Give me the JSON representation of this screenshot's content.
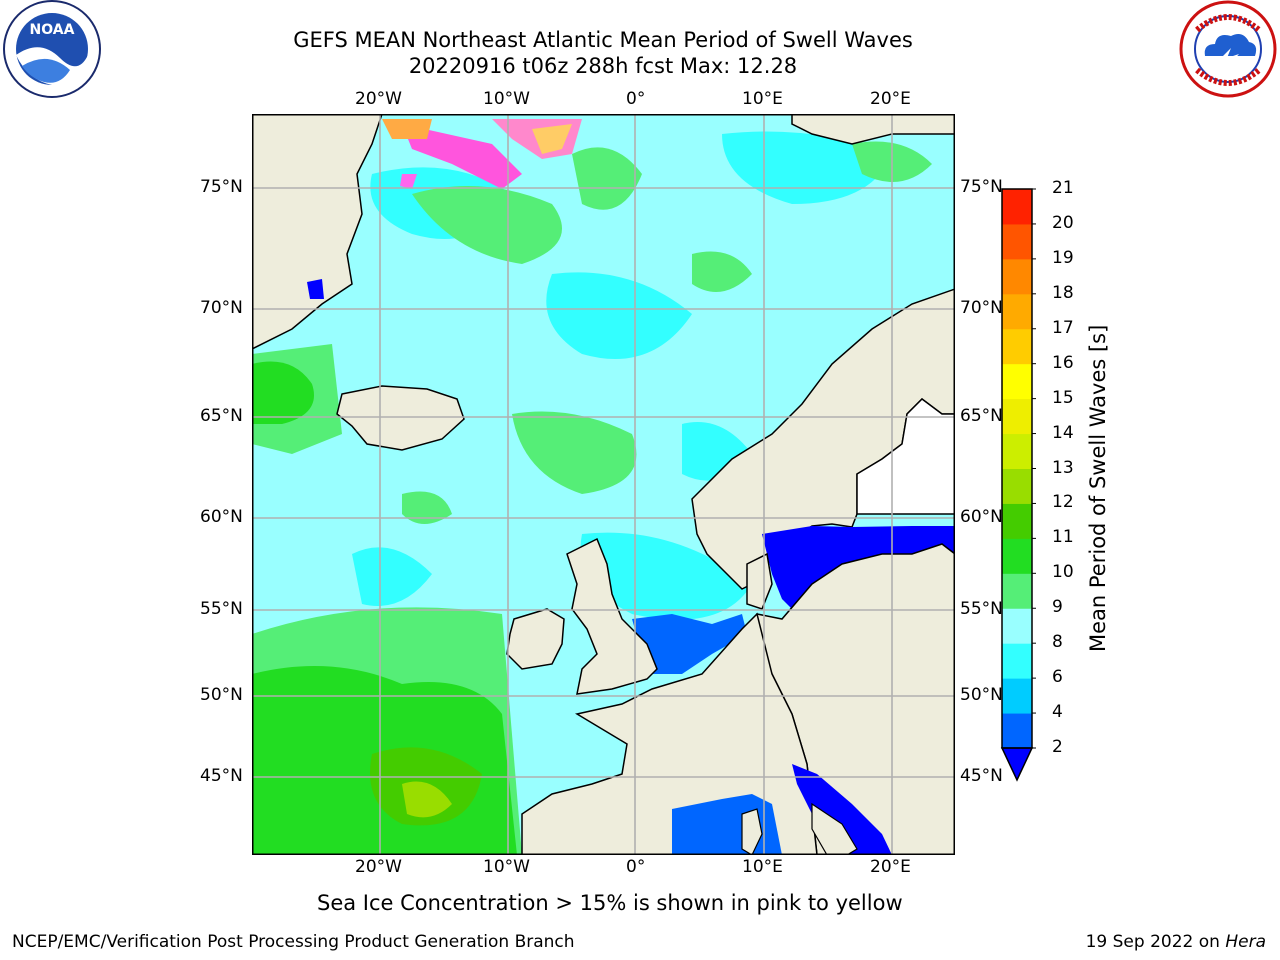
{
  "header": {
    "title_line1": "GEFS MEAN Northeast Atlantic Mean Period of Swell Waves",
    "title_line2": "20220916 t06z 288h fcst   Max: 12.28"
  },
  "logos": {
    "left": {
      "name": "noaa-logo",
      "text": "NOAA",
      "ring_text": "NATIONAL OCEANIC AND ATMOSPHERIC ADMINISTRATION · U.S. DEPARTMENT OF COMMERCE"
    },
    "right": {
      "name": "nws-logo",
      "ring_text": "NATIONAL WEATHER SERVICE"
    }
  },
  "map": {
    "lon_ticks_top": [
      "20°W",
      "10°W",
      "0°",
      "10°E",
      "20°E"
    ],
    "lon_ticks_bottom": [
      "20°W",
      "10°W",
      "0°",
      "10°E",
      "20°E"
    ],
    "lat_ticks_left": [
      "75°N",
      "70°N",
      "65°N",
      "60°N",
      "55°N",
      "50°N",
      "45°N"
    ],
    "lat_ticks_right": [
      "75°N",
      "70°N",
      "65°N",
      "60°N",
      "55°N",
      "50°N",
      "45°N"
    ],
    "land_color": "#eeeddc",
    "ocean_base_color": "#99ffff"
  },
  "colorbar": {
    "title": "Mean Period of Swell Waves [s]",
    "levels": [
      "2",
      "4",
      "6",
      "8",
      "9",
      "10",
      "11",
      "12",
      "13",
      "14",
      "15",
      "16",
      "17",
      "18",
      "19",
      "20",
      "21"
    ],
    "colors": [
      "#0066ff",
      "#00ccff",
      "#33ffff",
      "#99ffff",
      "#55ee77",
      "#22dd22",
      "#44cc00",
      "#99dd00",
      "#ccee00",
      "#eeee00",
      "#ffff00",
      "#ffcc00",
      "#ffaa00",
      "#ff8800",
      "#ff5500",
      "#ff2200"
    ],
    "under_color": "#0000ff"
  },
  "note": "Sea Ice Concentration > 15% is shown in pink to yellow",
  "footer": {
    "left": "NCEP/EMC/Verification Post Processing Product Generation Branch",
    "right_prefix": "19 Sep 2022 on ",
    "right_host": "Hera"
  }
}
